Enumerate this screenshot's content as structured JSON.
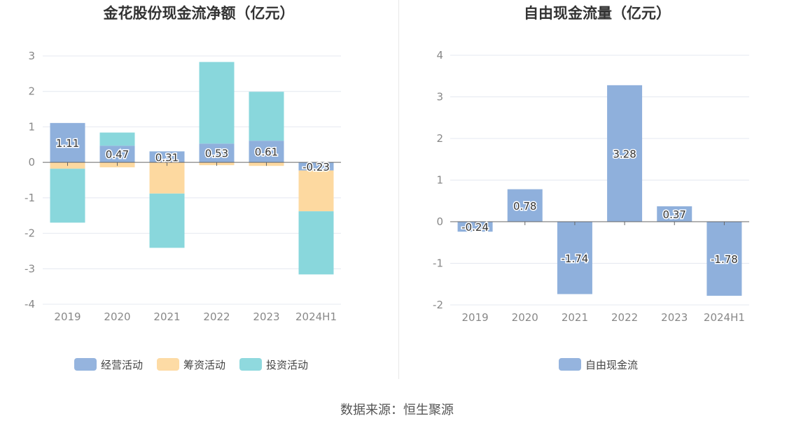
{
  "source": "数据来源：恒生聚源",
  "colors": {
    "operating": "#8fb0dc",
    "financing": "#fdd9a0",
    "investing": "#89d7dc",
    "free_cash_flow": "#8fb0dc",
    "axis_text": "#888888",
    "grid": "#e4e8f0",
    "title": "#333333"
  },
  "chart_data": [
    {
      "type": "bar",
      "stacked": true,
      "title": "金花股份现金流净额（亿元）",
      "categories": [
        "2019",
        "2020",
        "2021",
        "2022",
        "2023",
        "2024H1"
      ],
      "yticks": [
        "3",
        "2",
        "1",
        "0",
        "-1",
        "-2",
        "-3",
        "-4"
      ],
      "ylim": [
        -4,
        3
      ],
      "grid": true,
      "legend_position": "bottom",
      "series": [
        {
          "name": "经营活动",
          "color_key": "operating",
          "values": [
            1.11,
            0.47,
            0.31,
            0.53,
            0.61,
            -0.23
          ],
          "labels": [
            "1.11",
            "0.47",
            "0.31",
            "0.53",
            "0.61",
            "-0.23"
          ]
        },
        {
          "name": "筹资活动",
          "color_key": "financing",
          "values": [
            -0.18,
            -0.14,
            -0.88,
            -0.08,
            -0.1,
            -1.15
          ]
        },
        {
          "name": "投资活动",
          "color_key": "investing",
          "values": [
            -1.52,
            0.37,
            -1.53,
            2.3,
            1.38,
            -1.78
          ]
        }
      ]
    },
    {
      "type": "bar",
      "title": "自由现金流量（亿元）",
      "categories": [
        "2019",
        "2020",
        "2021",
        "2022",
        "2023",
        "2024H1"
      ],
      "yticks": [
        "4",
        "3",
        "2",
        "1",
        "0",
        "-1",
        "-2"
      ],
      "ylim": [
        -2,
        4
      ],
      "grid": true,
      "legend_position": "bottom",
      "series": [
        {
          "name": "自由现金流",
          "color_key": "free_cash_flow",
          "values": [
            -0.24,
            0.78,
            -1.74,
            3.28,
            0.37,
            -1.78
          ],
          "labels": [
            "-0.24",
            "0.78",
            "-1.74",
            "3.28",
            "0.37",
            "-1.78"
          ]
        }
      ]
    }
  ]
}
